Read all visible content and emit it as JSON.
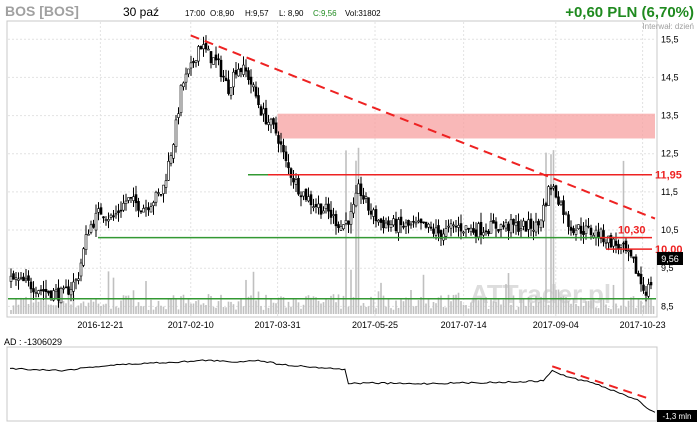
{
  "header": {
    "ticker": "BOS [BOS]",
    "date": "30 paź",
    "quote": {
      "time": "17:00",
      "open": "O:8,90",
      "high": "H:9,57",
      "low": "L: 8,90",
      "close": "C:9,56",
      "volume": "Vol:31802"
    },
    "change": "+0,60 PLN (6,70%)",
    "interval": "Interwał: dzień",
    "watermark": "ATTrader.pl"
  },
  "colors": {
    "price": "#000000",
    "volume": "#c0c0c0",
    "support": "#339933",
    "resistance": "#ee2222",
    "zone": "#f7a0a0",
    "change": "#1f8a1f",
    "ad_line": "#000000"
  },
  "chart_data": [
    {
      "type": "candlestick",
      "ylim": [
        8.3,
        15.9
      ],
      "y_ticks": [
        "8,5",
        "9,5",
        "10,5",
        "11,5",
        "12,5",
        "13,5",
        "14,5",
        "15,5"
      ],
      "x_ticks": [
        "2016-12-21",
        "2017-02-10",
        "2017-03-31",
        "2017-05-25",
        "2017-07-14",
        "2017-09-04",
        "2017-10-23"
      ],
      "last_price_label": "9,56",
      "price_path": [
        [
          "2016-10-31",
          9.2
        ],
        [
          "2016-11-10",
          9.1
        ],
        [
          "2016-11-20",
          8.9
        ],
        [
          "2016-11-30",
          8.8
        ],
        [
          "2016-12-08",
          9.2
        ],
        [
          "2016-12-14",
          10.5
        ],
        [
          "2016-12-21",
          11.0
        ],
        [
          "2016-12-28",
          10.8
        ],
        [
          "2017-01-05",
          11.3
        ],
        [
          "2017-01-15",
          11.1
        ],
        [
          "2017-01-25",
          11.5
        ],
        [
          "2017-02-01",
          13.0
        ],
        [
          "2017-02-05",
          14.3
        ],
        [
          "2017-02-10",
          14.7
        ],
        [
          "2017-02-15",
          15.4
        ],
        [
          "2017-02-20",
          15.1
        ],
        [
          "2017-02-26",
          14.8
        ],
        [
          "2017-03-03",
          14.2
        ],
        [
          "2017-03-08",
          14.8
        ],
        [
          "2017-03-14",
          14.6
        ],
        [
          "2017-03-22",
          13.6
        ],
        [
          "2017-03-31",
          13.0
        ],
        [
          "2017-04-05",
          12.2
        ],
        [
          "2017-04-12",
          11.6
        ],
        [
          "2017-04-20",
          11.2
        ],
        [
          "2017-04-28",
          11.0
        ],
        [
          "2017-05-06",
          10.6
        ],
        [
          "2017-05-12",
          10.9
        ],
        [
          "2017-05-16",
          11.6
        ],
        [
          "2017-05-22",
          11.0
        ],
        [
          "2017-05-28",
          10.7
        ],
        [
          "2017-06-08",
          10.6
        ],
        [
          "2017-06-20",
          10.6
        ],
        [
          "2017-07-01",
          10.4
        ],
        [
          "2017-07-10",
          10.6
        ],
        [
          "2017-07-20",
          10.5
        ],
        [
          "2017-08-01",
          10.6
        ],
        [
          "2017-08-15",
          10.6
        ],
        [
          "2017-08-25",
          10.6
        ],
        [
          "2017-09-01",
          11.7
        ],
        [
          "2017-09-06",
          11.3
        ],
        [
          "2017-09-12",
          10.6
        ],
        [
          "2017-09-20",
          10.5
        ],
        [
          "2017-09-28",
          10.4
        ],
        [
          "2017-10-05",
          10.2
        ],
        [
          "2017-10-12",
          10.0
        ],
        [
          "2017-10-18",
          9.6
        ],
        [
          "2017-10-24",
          8.9
        ],
        [
          "2017-10-27",
          9.0
        ],
        [
          "2017-10-30",
          9.56
        ]
      ],
      "volume_spikes": [
        "2017-05-09",
        "2017-05-15",
        "2017-08-29",
        "2017-09-02",
        "2017-10-12"
      ],
      "levels": [
        {
          "value": 11.95,
          "label": "11,95",
          "color": "resistance"
        },
        {
          "value": 10.3,
          "label": "10,30",
          "color": "resistance"
        },
        {
          "value": 10.0,
          "label": "10,00",
          "color": "resistance"
        },
        {
          "value": 10.3,
          "label": "",
          "color": "support"
        },
        {
          "value": 8.7,
          "label": "",
          "color": "support"
        },
        {
          "value": 11.95,
          "label": "",
          "color": "support"
        }
      ],
      "zone": {
        "from": 12.9,
        "to": 13.55,
        "start": "2017-03-31",
        "end": "2017-10-30"
      },
      "trendline": {
        "start": [
          "2017-02-10",
          15.6
        ],
        "end": [
          "2017-10-30",
          10.8
        ]
      }
    },
    {
      "type": "line",
      "title": "AD : -1306029",
      "last_value_label": "-1,3 mln",
      "ad_path": [
        [
          "2016-10-31",
          -0.25
        ],
        [
          "2016-11-15",
          -0.28
        ],
        [
          "2016-12-01",
          -0.3
        ],
        [
          "2016-12-15",
          -0.22
        ],
        [
          "2017-01-01",
          -0.16
        ],
        [
          "2017-01-20",
          -0.12
        ],
        [
          "2017-02-10",
          -0.08
        ],
        [
          "2017-02-20",
          -0.05
        ],
        [
          "2017-03-05",
          -0.1
        ],
        [
          "2017-03-20",
          -0.05
        ],
        [
          "2017-04-01",
          -0.15
        ],
        [
          "2017-04-20",
          -0.22
        ],
        [
          "2017-05-08",
          -0.27
        ],
        [
          "2017-05-10",
          -0.62
        ],
        [
          "2017-05-20",
          -0.6
        ],
        [
          "2017-06-15",
          -0.62
        ],
        [
          "2017-07-15",
          -0.6
        ],
        [
          "2017-08-10",
          -0.58
        ],
        [
          "2017-08-28",
          -0.55
        ],
        [
          "2017-09-02",
          -0.3
        ],
        [
          "2017-09-10",
          -0.45
        ],
        [
          "2017-09-25",
          -0.6
        ],
        [
          "2017-10-10",
          -0.85
        ],
        [
          "2017-10-20",
          -1.0
        ],
        [
          "2017-10-27",
          -1.25
        ],
        [
          "2017-10-30",
          -1.31
        ]
      ],
      "trendline": {
        "start": [
          "2017-09-02",
          -0.2
        ],
        "end": [
          "2017-10-28",
          -1.0
        ]
      }
    }
  ]
}
